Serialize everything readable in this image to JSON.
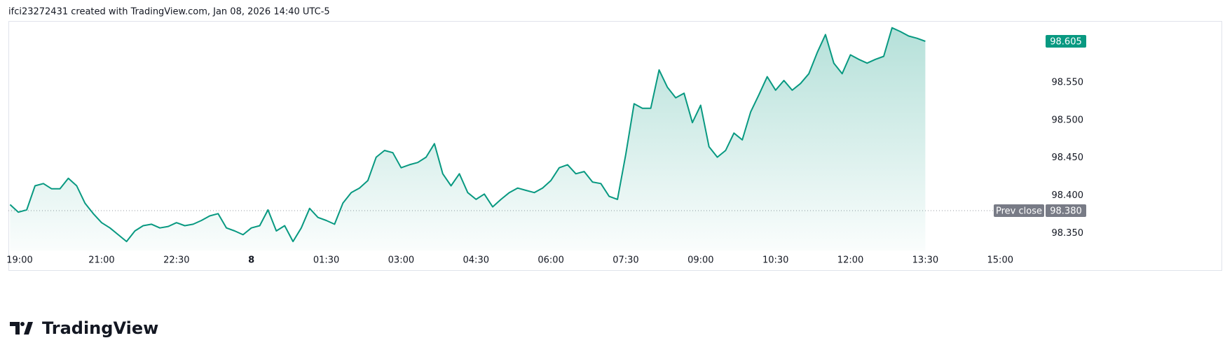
{
  "header": "ifci23272431 created with TradingView.com, Jan 08, 2026 14:40 UTC-5",
  "footer": "TradingView",
  "chart_data": {
    "type": "area",
    "color": "#089981",
    "x": [
      "19:10",
      "19:20",
      "19:30",
      "19:40",
      "19:50",
      "20:00",
      "20:10",
      "20:20",
      "20:30",
      "20:40",
      "20:50",
      "21:00",
      "21:10",
      "21:20",
      "21:30",
      "21:40",
      "21:50",
      "22:00",
      "22:10",
      "22:20",
      "22:30",
      "22:40",
      "22:50",
      "23:00",
      "23:10",
      "23:20",
      "23:30",
      "23:40",
      "23:50",
      "00:00",
      "00:10",
      "00:20",
      "00:30",
      "00:40",
      "00:50",
      "01:00",
      "01:10",
      "01:20",
      "01:30",
      "01:40",
      "01:50",
      "02:00",
      "02:10",
      "02:20",
      "02:30",
      "02:40",
      "02:50",
      "03:00",
      "03:10",
      "03:20",
      "03:30",
      "03:40",
      "03:50",
      "04:00",
      "04:10",
      "04:20",
      "04:30",
      "04:40",
      "04:50",
      "05:00",
      "05:10",
      "05:20",
      "05:30",
      "05:40",
      "05:50",
      "06:00",
      "06:10",
      "06:20",
      "06:30",
      "06:40",
      "06:50",
      "07:00",
      "07:10",
      "07:20",
      "07:30",
      "07:40",
      "07:50",
      "08:00",
      "08:10",
      "08:20",
      "08:30",
      "08:40",
      "08:50",
      "09:00",
      "09:10",
      "09:20",
      "09:30",
      "09:40",
      "09:50",
      "10:00",
      "10:10",
      "10:20",
      "10:30",
      "10:40",
      "10:50",
      "11:00",
      "11:10",
      "11:20",
      "11:30",
      "11:40",
      "11:50",
      "12:00",
      "12:10",
      "12:20",
      "12:30",
      "12:40",
      "12:50",
      "13:00",
      "13:10",
      "13:20",
      "13:30"
    ],
    "values": [
      98.388,
      98.378,
      98.381,
      98.413,
      98.416,
      98.409,
      98.409,
      98.423,
      98.413,
      98.39,
      98.376,
      98.364,
      98.357,
      98.348,
      98.339,
      98.353,
      98.36,
      98.362,
      98.357,
      98.359,
      98.364,
      98.36,
      98.362,
      98.367,
      98.373,
      98.376,
      98.357,
      98.353,
      98.348,
      98.357,
      98.36,
      98.381,
      98.353,
      98.36,
      98.339,
      98.357,
      98.383,
      98.371,
      98.367,
      98.362,
      98.39,
      98.404,
      98.41,
      98.42,
      98.451,
      98.46,
      98.457,
      98.437,
      98.441,
      98.444,
      98.451,
      98.469,
      98.429,
      98.413,
      98.429,
      98.404,
      98.395,
      98.402,
      98.385,
      98.395,
      98.404,
      98.41,
      98.407,
      98.404,
      98.41,
      98.42,
      98.437,
      98.441,
      98.429,
      98.432,
      98.418,
      98.416,
      98.399,
      98.395,
      98.455,
      98.522,
      98.516,
      98.516,
      98.567,
      98.544,
      98.53,
      98.536,
      98.497,
      98.52,
      98.465,
      98.451,
      98.46,
      98.483,
      98.474,
      98.511,
      98.534,
      98.558,
      98.54,
      98.553,
      98.54,
      98.549,
      98.562,
      98.59,
      98.614,
      98.576,
      98.562,
      98.587,
      98.581,
      98.576,
      98.581,
      98.585,
      98.623,
      98.618,
      98.612,
      98.609,
      98.605
    ],
    "xlim": [
      "19:08",
      "15:36"
    ],
    "xticks": [
      "19:00",
      "21:00",
      "22:30",
      {
        "value": "00:00",
        "label": "8"
      },
      "01:30",
      "03:00",
      "04:30",
      "06:00",
      "07:30",
      "09:00",
      "10:30",
      "12:00",
      "13:30",
      "15:00"
    ],
    "ylim": [
      98.327,
      98.632
    ],
    "yticks": [
      {
        "value": 98.35,
        "label": "98.350"
      },
      {
        "value": 98.4,
        "label": "98.400"
      },
      {
        "value": 98.45,
        "label": "98.450"
      },
      {
        "value": 98.5,
        "label": "98.500"
      },
      {
        "value": 98.55,
        "label": "98.550"
      }
    ],
    "grid": false,
    "prev_close": {
      "label": "Prev close",
      "value": 98.38,
      "value_label": "98.380"
    }
  }
}
